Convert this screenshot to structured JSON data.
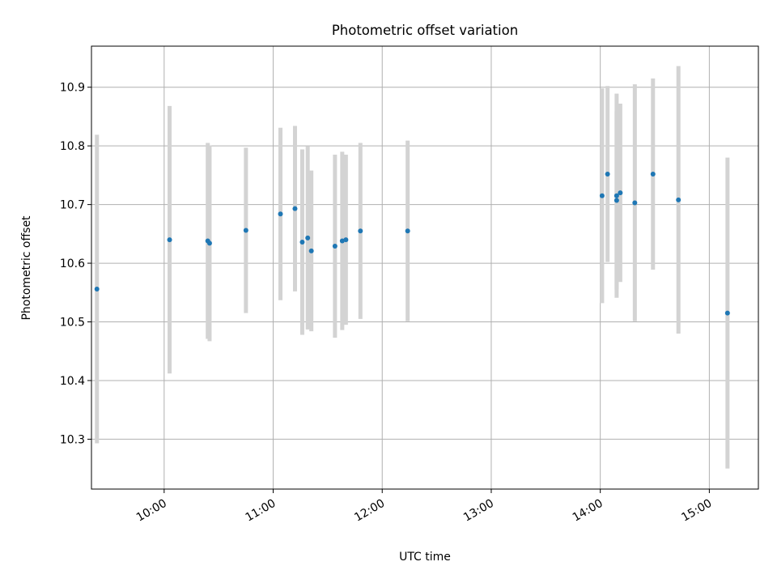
{
  "chart_data": {
    "type": "scatter",
    "title": "Photometric offset variation",
    "xlabel": "UTC time",
    "ylabel": "Photometric offset",
    "x_axis": {
      "kind": "time",
      "range": [
        "09:20",
        "15:27"
      ],
      "ticks": [
        "10:00",
        "11:00",
        "12:00",
        "13:00",
        "14:00",
        "15:00"
      ]
    },
    "y_axis": {
      "range": [
        10.215,
        10.97
      ],
      "ticks": [
        "10.3",
        "10.4",
        "10.5",
        "10.6",
        "10.7",
        "10.8",
        "10.9"
      ]
    },
    "grid": true,
    "legend": "none",
    "colors": {
      "points": "#1f77b4",
      "errorbars": "#d3d3d3",
      "grid": "#b0b0b0"
    },
    "points": [
      {
        "time": "09:23",
        "y": 10.556,
        "err": 0.263
      },
      {
        "time": "10:03",
        "y": 10.64,
        "err": 0.228
      },
      {
        "time": "10:24",
        "y": 10.638,
        "err": 0.167
      },
      {
        "time": "10:25",
        "y": 10.634,
        "err": 0.167
      },
      {
        "time": "10:45",
        "y": 10.656,
        "err": 0.141
      },
      {
        "time": "11:04",
        "y": 10.684,
        "err": 0.147
      },
      {
        "time": "11:12",
        "y": 10.693,
        "err": 0.141
      },
      {
        "time": "11:16",
        "y": 10.636,
        "err": 0.158
      },
      {
        "time": "11:19",
        "y": 10.643,
        "err": 0.156
      },
      {
        "time": "11:21",
        "y": 10.621,
        "err": 0.137
      },
      {
        "time": "11:34",
        "y": 10.629,
        "err": 0.156
      },
      {
        "time": "11:38",
        "y": 10.638,
        "err": 0.152
      },
      {
        "time": "11:40",
        "y": 10.64,
        "err": 0.145
      },
      {
        "time": "11:48",
        "y": 10.655,
        "err": 0.15
      },
      {
        "time": "12:14",
        "y": 10.655,
        "err": 0.154
      },
      {
        "time": "14:01",
        "y": 10.715,
        "err": 0.183
      },
      {
        "time": "14:04",
        "y": 10.752,
        "err": 0.15
      },
      {
        "time": "14:09",
        "y": 10.715,
        "err": 0.174
      },
      {
        "time": "14:09",
        "y": 10.707,
        "err": 0.152
      },
      {
        "time": "14:11",
        "y": 10.72,
        "err": 0.152
      },
      {
        "time": "14:19",
        "y": 10.703,
        "err": 0.202
      },
      {
        "time": "14:29",
        "y": 10.752,
        "err": 0.163
      },
      {
        "time": "14:43",
        "y": 10.708,
        "err": 0.228
      },
      {
        "time": "15:10",
        "y": 10.515,
        "err": 0.265
      }
    ]
  }
}
